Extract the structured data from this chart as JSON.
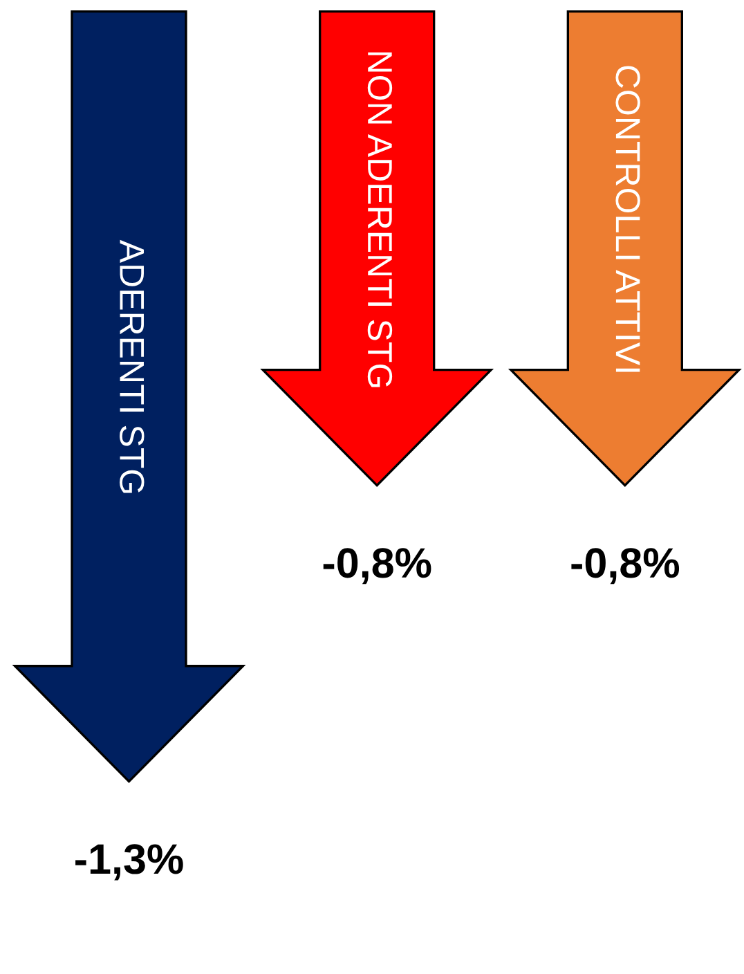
{
  "chart_data": {
    "type": "bar",
    "categories": [
      "ADERENTI STG",
      "NON ADERENTI STG",
      "CONTROLLI ATTIVI"
    ],
    "values": [
      -1.3,
      -0.8,
      -0.8
    ],
    "colors": [
      "#002060",
      "#ff0000",
      "#ed7d31"
    ],
    "value_labels": [
      "-1,3%",
      "-0,8%",
      "-0,8%"
    ]
  }
}
